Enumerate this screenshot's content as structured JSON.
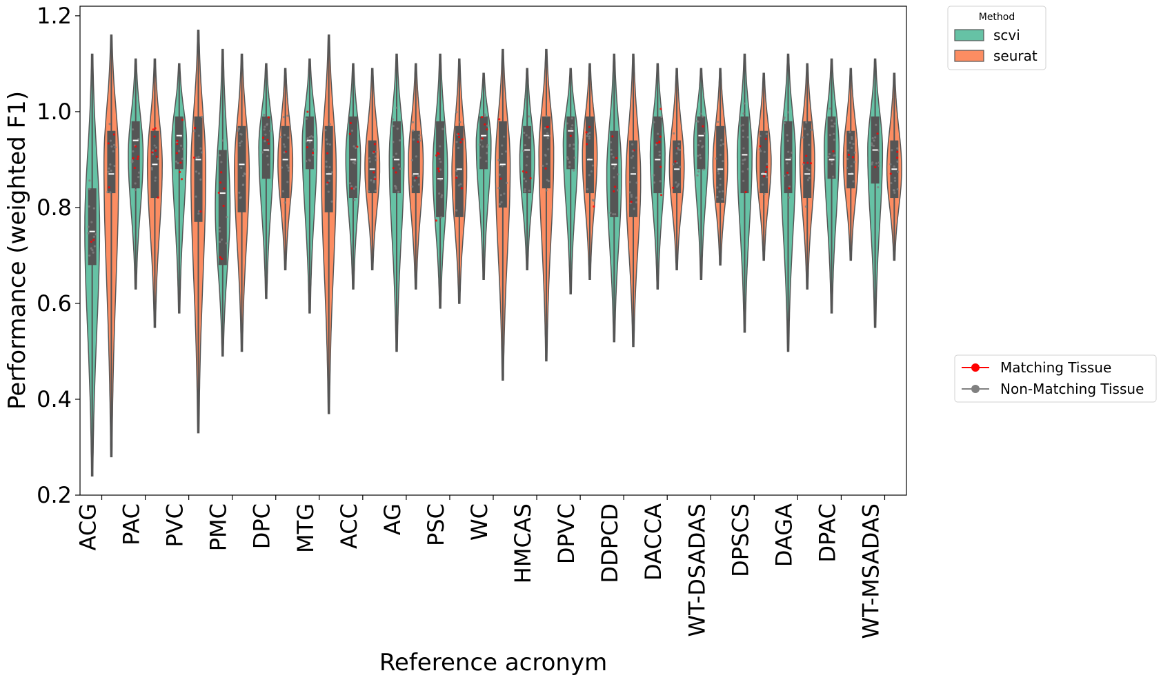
{
  "chart_data": {
    "type": "violin",
    "xlabel": "Reference acronym",
    "ylabel": "Performance (weighted F1)",
    "ylim": [
      0.2,
      1.22
    ],
    "yticks": [
      "0.2",
      "0.4",
      "0.6",
      "0.8",
      "1.0",
      "1.2"
    ],
    "categories": [
      "ACG",
      "PAC",
      "PVC",
      "PMC",
      "DPC",
      "MTG",
      "ACC",
      "AG",
      "PSC",
      "WC",
      "HMCAS",
      "DPVC",
      "DDPCD",
      "DACCA",
      "WT-DSADAS",
      "DPSCS",
      "DAGA",
      "DPAC",
      "WT-MSADAS"
    ],
    "grid": false,
    "legend_method": {
      "title": "Method",
      "placement": "outside-top-right",
      "entries": [
        "scvi",
        "seurat"
      ]
    },
    "legend_tissue": {
      "placement": "outside-right",
      "entries": [
        "Matching Tissue",
        "Non-Matching Tissue"
      ]
    },
    "series": [
      {
        "name": "scvi",
        "color": "#66c2a5",
        "min": [
          0.24,
          0.63,
          0.58,
          0.49,
          0.61,
          0.58,
          0.63,
          0.5,
          0.59,
          0.65,
          0.67,
          0.62,
          0.52,
          0.63,
          0.65,
          0.54,
          0.5,
          0.58,
          0.55
        ],
        "q1": [
          0.68,
          0.84,
          0.88,
          0.68,
          0.86,
          0.88,
          0.82,
          0.83,
          0.78,
          0.88,
          0.83,
          0.88,
          0.78,
          0.83,
          0.88,
          0.83,
          0.83,
          0.86,
          0.85
        ],
        "median": [
          0.75,
          0.94,
          0.95,
          0.83,
          0.92,
          0.94,
          0.9,
          0.9,
          0.86,
          0.95,
          0.92,
          0.96,
          0.89,
          0.9,
          0.95,
          0.91,
          0.9,
          0.9,
          0.92
        ],
        "q3": [
          0.84,
          0.98,
          0.99,
          0.92,
          0.99,
          0.99,
          0.99,
          0.98,
          0.98,
          0.99,
          0.97,
          0.99,
          0.96,
          0.99,
          0.99,
          0.99,
          0.98,
          0.99,
          0.99
        ],
        "max": [
          1.12,
          1.11,
          1.1,
          1.13,
          1.1,
          1.11,
          1.1,
          1.12,
          1.12,
          1.08,
          1.09,
          1.09,
          1.12,
          1.1,
          1.09,
          1.12,
          1.12,
          1.11,
          1.11
        ]
      },
      {
        "name": "seurat",
        "color": "#fc8d62",
        "min": [
          0.28,
          0.55,
          0.33,
          0.5,
          0.67,
          0.37,
          0.67,
          0.63,
          0.6,
          0.44,
          0.48,
          0.65,
          0.51,
          0.67,
          0.68,
          0.69,
          0.63,
          0.69,
          0.69
        ],
        "q1": [
          0.83,
          0.82,
          0.77,
          0.79,
          0.82,
          0.79,
          0.83,
          0.83,
          0.78,
          0.8,
          0.84,
          0.83,
          0.78,
          0.83,
          0.81,
          0.83,
          0.82,
          0.84,
          0.82
        ],
        "median": [
          0.87,
          0.89,
          0.9,
          0.89,
          0.9,
          0.87,
          0.88,
          0.87,
          0.88,
          0.89,
          0.95,
          0.9,
          0.87,
          0.88,
          0.88,
          0.87,
          0.87,
          0.87,
          0.88
        ],
        "q3": [
          0.96,
          0.96,
          0.99,
          0.97,
          0.97,
          0.97,
          0.94,
          0.96,
          0.97,
          0.98,
          0.99,
          0.99,
          0.94,
          0.94,
          0.97,
          0.96,
          0.98,
          0.96,
          0.94
        ],
        "max": [
          1.16,
          1.11,
          1.17,
          1.12,
          1.09,
          1.16,
          1.09,
          1.1,
          1.11,
          1.13,
          1.13,
          1.1,
          1.12,
          1.09,
          1.09,
          1.08,
          1.1,
          1.09,
          1.08
        ]
      }
    ],
    "point_colors": {
      "matching": "#ff0000",
      "non_matching": "#808080"
    }
  }
}
